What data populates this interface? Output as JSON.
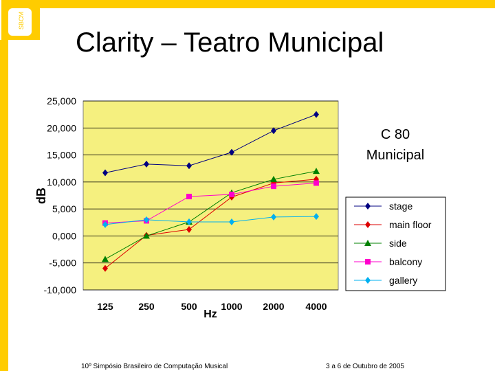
{
  "slide": {
    "title": "Clarity – Teatro Municipal",
    "logo_text": "SBCM 2005",
    "footer_left": "10º Simpósio Brasileiro de Computação Musical",
    "footer_right": "3 a 6 de Outubro de 2005",
    "accent_color": "#FFCC00"
  },
  "chart_data": {
    "type": "line",
    "title": "C 80 Municipal",
    "title_lines": [
      "C 80",
      "Municipal"
    ],
    "xlabel": "Hz",
    "ylabel": "dB",
    "categories": [
      "125",
      "250",
      "500",
      "1000",
      "2000",
      "4000"
    ],
    "ylim": [
      -10,
      25
    ],
    "yticks": [
      25,
      20,
      15,
      10,
      5,
      0,
      -5,
      -10
    ],
    "ytick_labels": [
      "25,000",
      "20,000",
      "15,000",
      "10,000",
      "5,000",
      "0,000",
      "-5,000",
      "-10,000"
    ],
    "grid": true,
    "plot_background": "#F5F07F",
    "legend_position": "right",
    "series": [
      {
        "name": "stage",
        "color": "#000080",
        "marker": "diamond",
        "values": [
          11.7,
          13.3,
          13.0,
          15.5,
          19.5,
          22.5
        ]
      },
      {
        "name": "main floor",
        "color": "#DD0000",
        "marker": "diamond",
        "values": [
          -6.0,
          0.1,
          1.2,
          7.2,
          9.8,
          10.5
        ]
      },
      {
        "name": "side",
        "color": "#008000",
        "marker": "triangle",
        "values": [
          -4.3,
          0.0,
          2.6,
          8.0,
          10.5,
          12.0
        ]
      },
      {
        "name": "balcony",
        "color": "#FF00CC",
        "marker": "square",
        "values": [
          2.4,
          2.8,
          7.3,
          7.7,
          9.2,
          9.8
        ]
      },
      {
        "name": "gallery",
        "color": "#00B0F0",
        "marker": "diamond",
        "values": [
          2.1,
          3.0,
          2.6,
          2.6,
          3.5,
          3.6
        ]
      }
    ]
  }
}
